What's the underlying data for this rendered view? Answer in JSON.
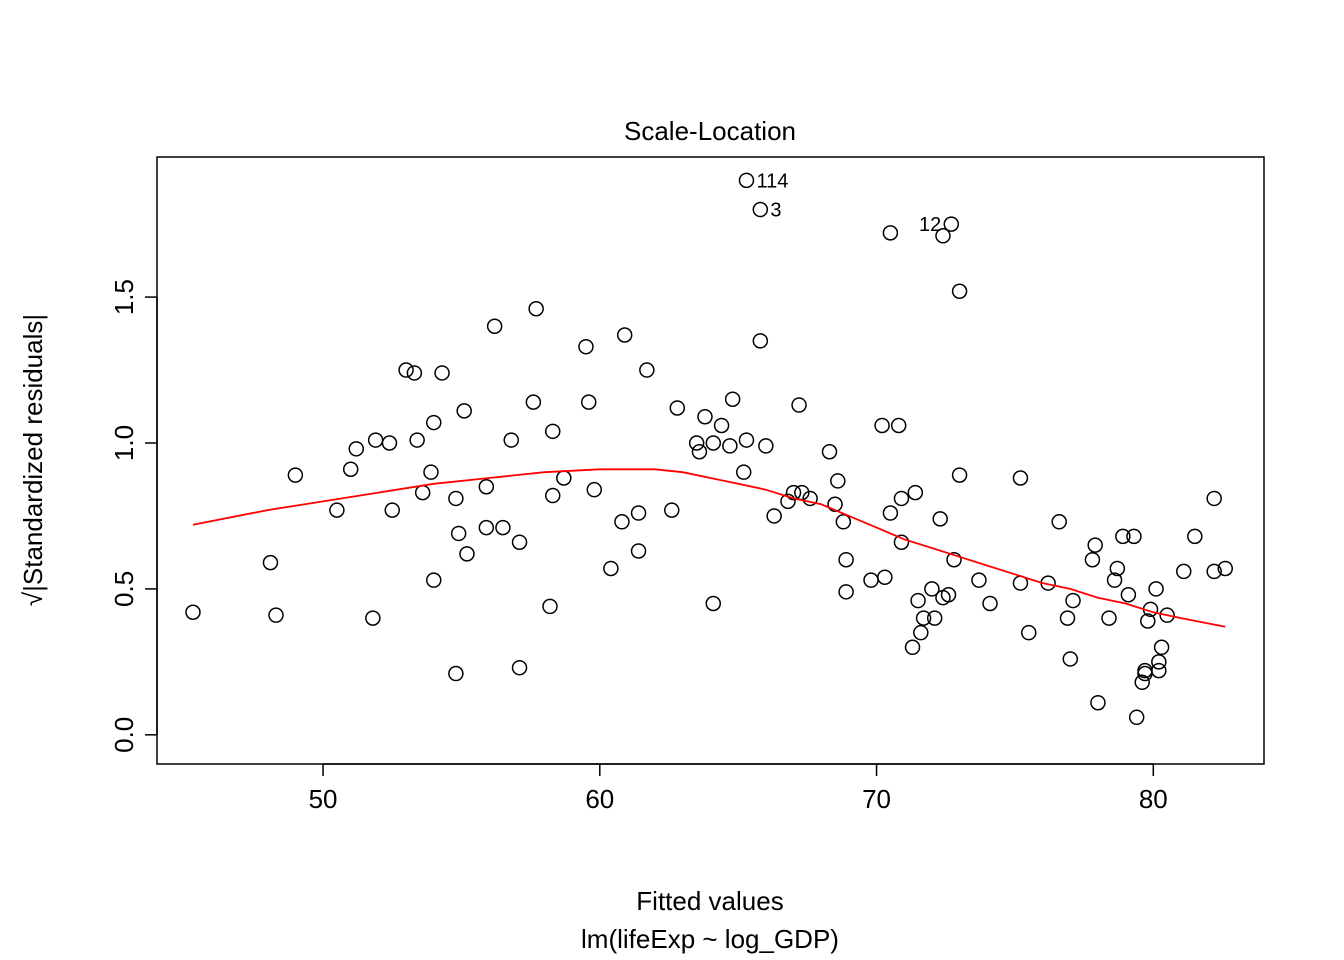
{
  "chart_data": {
    "type": "scatter",
    "title": "Scale-Location",
    "xlabel": "Fitted values",
    "xsublabel": "lm(lifeExp ~ log_GDP)",
    "ylabel": "√|Standardized residuals|",
    "xlim": [
      44,
      84
    ],
    "ylim": [
      -0.1,
      1.98
    ],
    "x_ticks": [
      50,
      60,
      70,
      80
    ],
    "y_ticks": [
      0.0,
      0.5,
      1.0,
      1.5
    ],
    "x_tick_labels": [
      "50",
      "60",
      "70",
      "80"
    ],
    "y_tick_labels": [
      "0.0",
      "0.5",
      "1.0",
      "1.5"
    ],
    "grid": false,
    "points": [
      [
        45.3,
        0.42
      ],
      [
        48.1,
        0.59
      ],
      [
        48.3,
        0.41
      ],
      [
        49.0,
        0.89
      ],
      [
        50.5,
        0.77
      ],
      [
        51.0,
        0.91
      ],
      [
        51.2,
        0.98
      ],
      [
        51.8,
        0.4
      ],
      [
        51.9,
        1.01
      ],
      [
        52.4,
        1.0
      ],
      [
        52.5,
        0.77
      ],
      [
        53.0,
        1.25
      ],
      [
        53.3,
        1.24
      ],
      [
        53.4,
        1.01
      ],
      [
        53.6,
        0.83
      ],
      [
        53.9,
        0.9
      ],
      [
        54.0,
        0.53
      ],
      [
        54.0,
        1.07
      ],
      [
        54.3,
        1.24
      ],
      [
        54.8,
        0.81
      ],
      [
        54.8,
        0.21
      ],
      [
        54.9,
        0.69
      ],
      [
        55.1,
        1.11
      ],
      [
        55.2,
        0.62
      ],
      [
        55.9,
        0.85
      ],
      [
        55.9,
        0.71
      ],
      [
        56.2,
        1.4
      ],
      [
        56.5,
        0.71
      ],
      [
        56.8,
        1.01
      ],
      [
        57.1,
        0.23
      ],
      [
        57.1,
        0.66
      ],
      [
        57.6,
        1.14
      ],
      [
        57.7,
        1.46
      ],
      [
        58.2,
        0.44
      ],
      [
        58.3,
        1.04
      ],
      [
        58.3,
        0.82
      ],
      [
        58.7,
        0.88
      ],
      [
        59.5,
        1.33
      ],
      [
        59.6,
        1.14
      ],
      [
        59.8,
        0.84
      ],
      [
        60.4,
        0.57
      ],
      [
        60.8,
        0.73
      ],
      [
        60.9,
        1.37
      ],
      [
        61.4,
        0.63
      ],
      [
        61.4,
        0.76
      ],
      [
        61.7,
        1.25
      ],
      [
        62.6,
        0.77
      ],
      [
        62.8,
        1.12
      ],
      [
        63.5,
        1.0
      ],
      [
        63.6,
        0.97
      ],
      [
        63.8,
        1.09
      ],
      [
        64.1,
        1.0
      ],
      [
        64.1,
        0.45
      ],
      [
        64.4,
        1.06
      ],
      [
        64.7,
        0.99
      ],
      [
        64.8,
        1.15
      ],
      [
        65.2,
        0.9
      ],
      [
        65.3,
        1.01
      ],
      [
        65.3,
        1.9
      ],
      [
        65.8,
        1.8
      ],
      [
        65.8,
        1.35
      ],
      [
        66.0,
        0.99
      ],
      [
        66.3,
        0.75
      ],
      [
        66.8,
        0.8
      ],
      [
        67.0,
        0.83
      ],
      [
        67.2,
        1.13
      ],
      [
        67.3,
        0.83
      ],
      [
        67.6,
        0.81
      ],
      [
        68.3,
        0.97
      ],
      [
        68.5,
        0.79
      ],
      [
        68.6,
        0.87
      ],
      [
        68.8,
        0.73
      ],
      [
        68.9,
        0.6
      ],
      [
        68.9,
        0.49
      ],
      [
        69.8,
        0.53
      ],
      [
        70.2,
        1.06
      ],
      [
        70.3,
        0.54
      ],
      [
        70.5,
        1.72
      ],
      [
        70.5,
        0.76
      ],
      [
        70.8,
        1.06
      ],
      [
        70.9,
        0.81
      ],
      [
        70.9,
        0.66
      ],
      [
        71.3,
        0.3
      ],
      [
        71.4,
        0.83
      ],
      [
        71.5,
        0.46
      ],
      [
        71.6,
        0.35
      ],
      [
        71.7,
        0.4
      ],
      [
        72.0,
        0.5
      ],
      [
        72.1,
        0.4
      ],
      [
        72.3,
        0.74
      ],
      [
        72.4,
        0.47
      ],
      [
        72.4,
        1.71
      ],
      [
        72.6,
        0.48
      ],
      [
        72.7,
        1.75
      ],
      [
        72.8,
        0.6
      ],
      [
        73.0,
        0.89
      ],
      [
        73.0,
        1.52
      ],
      [
        73.7,
        0.53
      ],
      [
        74.1,
        0.45
      ],
      [
        75.2,
        0.52
      ],
      [
        75.2,
        0.88
      ],
      [
        75.5,
        0.35
      ],
      [
        76.2,
        0.52
      ],
      [
        76.6,
        0.73
      ],
      [
        76.9,
        0.4
      ],
      [
        77.0,
        0.26
      ],
      [
        77.1,
        0.46
      ],
      [
        77.8,
        0.6
      ],
      [
        77.9,
        0.65
      ],
      [
        78.0,
        0.11
      ],
      [
        78.4,
        0.4
      ],
      [
        78.6,
        0.53
      ],
      [
        78.7,
        0.57
      ],
      [
        78.9,
        0.68
      ],
      [
        79.1,
        0.48
      ],
      [
        79.3,
        0.68
      ],
      [
        79.4,
        0.06
      ],
      [
        79.6,
        0.18
      ],
      [
        79.7,
        0.22
      ],
      [
        79.7,
        0.21
      ],
      [
        79.8,
        0.39
      ],
      [
        79.9,
        0.43
      ],
      [
        80.1,
        0.5
      ],
      [
        80.2,
        0.25
      ],
      [
        80.2,
        0.22
      ],
      [
        80.3,
        0.3
      ],
      [
        80.5,
        0.41
      ],
      [
        81.1,
        0.56
      ],
      [
        81.5,
        0.68
      ],
      [
        82.2,
        0.56
      ],
      [
        82.2,
        0.81
      ],
      [
        82.6,
        0.57
      ]
    ],
    "point_labels": [
      {
        "text": "114",
        "x": 65.3,
        "y": 1.9,
        "side": "right"
      },
      {
        "text": "3",
        "x": 65.8,
        "y": 1.8,
        "side": "right"
      },
      {
        "text": "12",
        "x": 72.7,
        "y": 1.75,
        "side": "left"
      }
    ],
    "smooth_line": {
      "color": "#ff0000",
      "points": [
        [
          45.3,
          0.72
        ],
        [
          48,
          0.77
        ],
        [
          50,
          0.8
        ],
        [
          52,
          0.83
        ],
        [
          54,
          0.86
        ],
        [
          56,
          0.88
        ],
        [
          58,
          0.9
        ],
        [
          60,
          0.91
        ],
        [
          62,
          0.91
        ],
        [
          63,
          0.9
        ],
        [
          64,
          0.88
        ],
        [
          65,
          0.86
        ],
        [
          66,
          0.84
        ],
        [
          67,
          0.81
        ],
        [
          68,
          0.79
        ],
        [
          69,
          0.75
        ],
        [
          70,
          0.71
        ],
        [
          71,
          0.67
        ],
        [
          72,
          0.64
        ],
        [
          73,
          0.61
        ],
        [
          74,
          0.58
        ],
        [
          75,
          0.55
        ],
        [
          76,
          0.52
        ],
        [
          77,
          0.5
        ],
        [
          78,
          0.47
        ],
        [
          79,
          0.45
        ],
        [
          80,
          0.42
        ],
        [
          81,
          0.4
        ],
        [
          82.6,
          0.37
        ]
      ]
    },
    "point_color": "#000000"
  }
}
